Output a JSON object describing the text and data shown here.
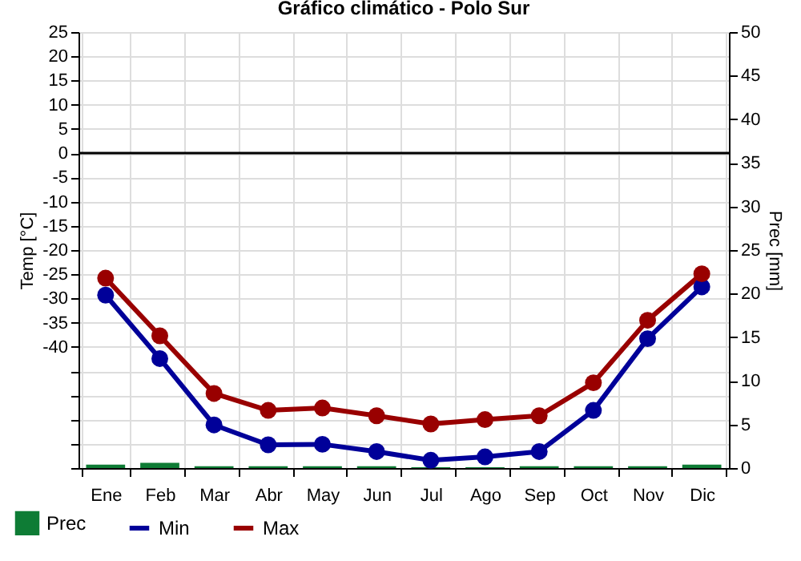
{
  "chart_data": {
    "type": "line",
    "title": "Gráfico climático - Polo Sur",
    "ylabel": "Temp [°C]",
    "y2label": "Prec [mm]",
    "categories": [
      "Ene",
      "Feb",
      "Mar",
      "Abr",
      "May",
      "Jun",
      "Jul",
      "Ago",
      "Sep",
      "Oct",
      "Nov",
      "Dic"
    ],
    "series": [
      {
        "name": "Prec",
        "type": "bar",
        "axis": "y2",
        "color": "#0e7c35",
        "values": [
          0.4,
          0.6,
          0.2,
          0.2,
          0.2,
          0.2,
          0.1,
          0.1,
          0.2,
          0.2,
          0.2,
          0.4
        ]
      },
      {
        "name": "Min",
        "color": "#000099",
        "values": [
          -29.3,
          -42.4,
          -56.1,
          -60.2,
          -60.1,
          -61.6,
          -63.4,
          -62.7,
          -61.6,
          -53.1,
          -38.3,
          -27.6
        ]
      },
      {
        "name": "Max",
        "color": "#990000",
        "values": [
          -25.8,
          -37.7,
          -49.6,
          -53.1,
          -52.6,
          -54.2,
          -55.9,
          -55.0,
          -54.2,
          -47.4,
          -34.5,
          -24.9
        ]
      }
    ],
    "ylim": [
      -65,
      25
    ],
    "yticks": [
      25,
      20,
      15,
      10,
      5,
      0,
      -5,
      -10,
      -15,
      -20,
      -25,
      -30,
      -35,
      -40,
      {
        "value": -45,
        "label": null
      },
      {
        "value": -50,
        "label": null
      },
      {
        "value": -55,
        "label": null
      },
      {
        "value": -60,
        "label": null
      },
      {
        "value": -65,
        "label": null
      }
    ],
    "y2lim": [
      0,
      50
    ],
    "y2ticks": [
      0,
      5,
      10,
      15,
      20,
      25,
      30,
      35,
      40,
      45,
      50
    ],
    "ref_lines": [
      {
        "axis": "y",
        "value": 0,
        "color": "#000000"
      }
    ],
    "grid": true,
    "legend": "bottom left",
    "marker": "circle",
    "line_style": "solid"
  }
}
